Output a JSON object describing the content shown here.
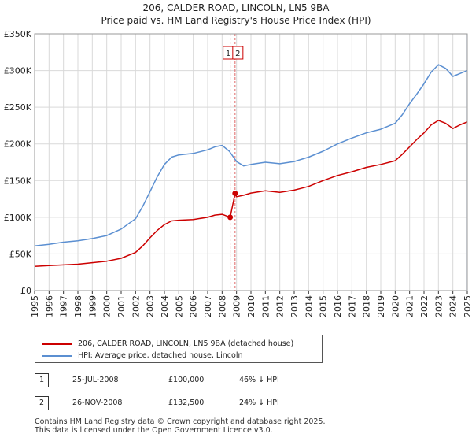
{
  "title_line1": "206, CALDER ROAD, LINCOLN, LN5 9BA",
  "title_line2": "Price paid vs. HM Land Registry's House Price Index (HPI)",
  "colors": {
    "property": "#cc0000",
    "hpi": "#5b8fd1",
    "marker_line": "#e06666",
    "shade": "#dde6f5"
  },
  "legend": {
    "property_label": "206, CALDER ROAD, LINCOLN, LN5 9BA (detached house)",
    "hpi_label": "HPI: Average price, detached house, Lincoln"
  },
  "transactions": [
    {
      "id": "1",
      "date": "25-JUL-2008",
      "price": "£100,000",
      "hpi_diff": "46% ↓ HPI"
    },
    {
      "id": "2",
      "date": "26-NOV-2008",
      "price": "£132,500",
      "hpi_diff": "24% ↓ HPI"
    }
  ],
  "footer": {
    "line1": "Contains HM Land Registry data © Crown copyright and database right 2025.",
    "line2": "This data is licensed under the Open Government Licence v3.0."
  },
  "chart_data": {
    "type": "line",
    "title": "206, CALDER ROAD, LINCOLN, LN5 9BA — Price paid vs. HM Land Registry's House Price Index (HPI)",
    "xlabel": "",
    "ylabel": "",
    "xlim": [
      1995.0,
      2025.0
    ],
    "ylim": [
      0,
      350000
    ],
    "y_ticks": [
      0,
      50000,
      100000,
      150000,
      200000,
      250000,
      300000,
      350000
    ],
    "y_tick_labels": [
      "£0",
      "£50K",
      "£100K",
      "£150K",
      "£200K",
      "£250K",
      "£300K",
      "£350K"
    ],
    "x_ticks": [
      1995,
      1996,
      1997,
      1998,
      1999,
      2000,
      2001,
      2002,
      2003,
      2004,
      2005,
      2006,
      2007,
      2008,
      2009,
      2010,
      2011,
      2012,
      2013,
      2014,
      2015,
      2016,
      2017,
      2018,
      2019,
      2020,
      2021,
      2022,
      2023,
      2024,
      2025
    ],
    "x_tick_labels": [
      "1995",
      "1996",
      "1997",
      "1998",
      "1999",
      "2000",
      "2001",
      "2002",
      "2003",
      "2004",
      "2005",
      "2006",
      "2007",
      "2008",
      "2009",
      "2010",
      "2011",
      "2012",
      "2013",
      "2014",
      "2015",
      "2016",
      "2017",
      "2018",
      "2019",
      "2020",
      "2021",
      "2022",
      "2023",
      "2024",
      "2025"
    ],
    "grid": true,
    "shaded_future_from": 2025.0,
    "series": [
      {
        "name": "HPI: Average price, detached house, Lincoln",
        "x": [
          1995.0,
          1996.0,
          1997.0,
          1998.0,
          1999.0,
          2000.0,
          2001.0,
          2002.0,
          2002.5,
          2003.0,
          2003.5,
          2004.0,
          2004.5,
          2005.0,
          2006.0,
          2007.0,
          2007.5,
          2008.0,
          2008.5,
          2009.0,
          2009.5,
          2010.0,
          2011.0,
          2012.0,
          2013.0,
          2014.0,
          2015.0,
          2016.0,
          2017.0,
          2018.0,
          2019.0,
          2020.0,
          2020.5,
          2021.0,
          2021.5,
          2022.0,
          2022.5,
          2023.0,
          2023.5,
          2024.0,
          2024.5,
          2025.0
        ],
        "y": [
          61000,
          63000,
          66000,
          68000,
          71000,
          75000,
          84000,
          98000,
          115000,
          135000,
          155000,
          172000,
          182000,
          185000,
          187000,
          192000,
          196000,
          198000,
          190000,
          176000,
          170000,
          172000,
          175000,
          173000,
          176000,
          182000,
          190000,
          200000,
          208000,
          215000,
          220000,
          228000,
          240000,
          255000,
          268000,
          282000,
          298000,
          308000,
          303000,
          292000,
          296000,
          300000
        ]
      },
      {
        "name": "206, CALDER ROAD, LINCOLN, LN5 9BA (detached house)",
        "x": [
          1995.0,
          1996.0,
          1997.0,
          1998.0,
          1999.0,
          2000.0,
          2001.0,
          2002.0,
          2002.5,
          2003.0,
          2003.5,
          2004.0,
          2004.5,
          2005.0,
          2006.0,
          2007.0,
          2007.5,
          2008.0,
          2008.56,
          2008.9,
          2009.0,
          2009.5,
          2010.0,
          2011.0,
          2012.0,
          2013.0,
          2014.0,
          2015.0,
          2016.0,
          2017.0,
          2018.0,
          2019.0,
          2020.0,
          2020.5,
          2021.0,
          2021.5,
          2022.0,
          2022.5,
          2023.0,
          2023.5,
          2024.0,
          2024.5,
          2025.0
        ],
        "y": [
          33000,
          34000,
          35000,
          36000,
          38000,
          40000,
          44000,
          52000,
          61000,
          72000,
          82000,
          90000,
          95000,
          96000,
          97000,
          100000,
          103000,
          104000,
          100000,
          132500,
          128000,
          130000,
          133000,
          136000,
          134000,
          137000,
          142000,
          150000,
          157000,
          162000,
          168000,
          172000,
          177000,
          186000,
          196000,
          206000,
          215000,
          226000,
          232000,
          228000,
          221000,
          226000,
          230000
        ]
      }
    ],
    "markers": [
      {
        "label": "1",
        "x": 2008.56,
        "y": 100000
      },
      {
        "label": "2",
        "x": 2008.9,
        "y": 132500
      }
    ]
  }
}
